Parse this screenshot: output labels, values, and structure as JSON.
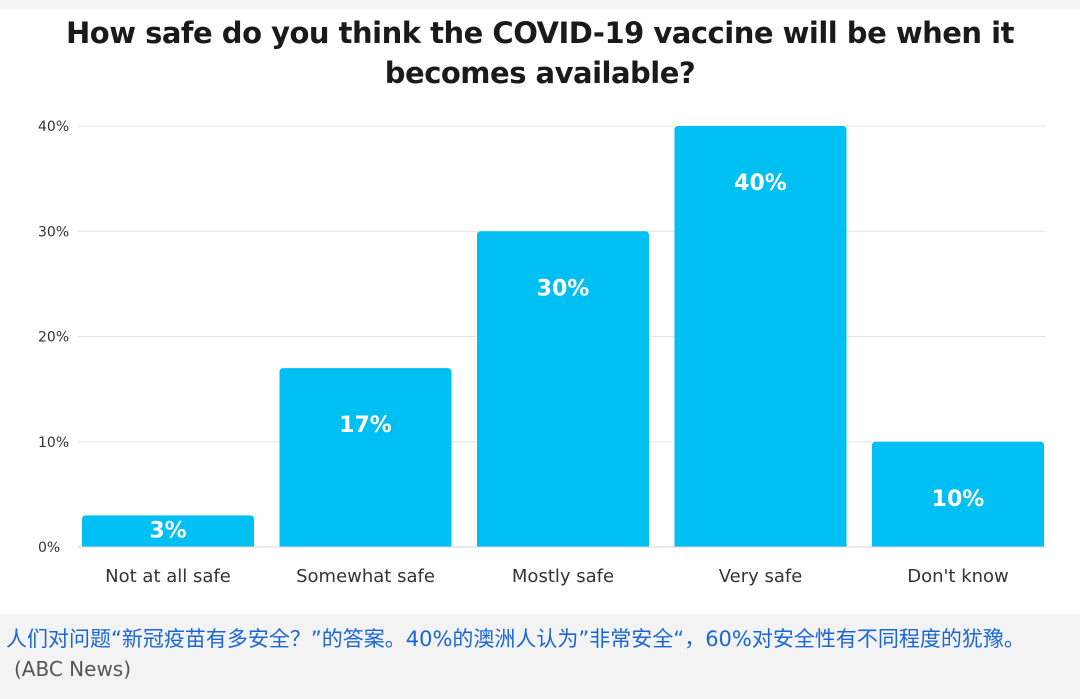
{
  "chart_data": {
    "type": "bar",
    "title": "How safe do you think the COVID-19 vaccine will be when it becomes available?",
    "categories": [
      "Not at all safe",
      "Somewhat safe",
      "Mostly safe",
      "Very safe",
      "Don't know"
    ],
    "values": [
      3,
      17,
      30,
      40,
      10
    ],
    "data_labels": [
      "3%",
      "17%",
      "30%",
      "40%",
      "10%"
    ],
    "y_ticks": [
      0,
      10,
      20,
      30,
      40
    ],
    "y_tick_labels": [
      "0%",
      "10%",
      "20%",
      "30%",
      "40%"
    ],
    "ylim": [
      0,
      40
    ],
    "grid": true,
    "bar_color": "#00bff2",
    "data_label_color": "#ffffff"
  },
  "caption": {
    "text": "人们对问题“新冠疫苗有多安全？”的答案。40%的澳洲人认为”非常安全“，60%对安全性有不同程度的犹豫。",
    "source": "(ABC News)"
  }
}
